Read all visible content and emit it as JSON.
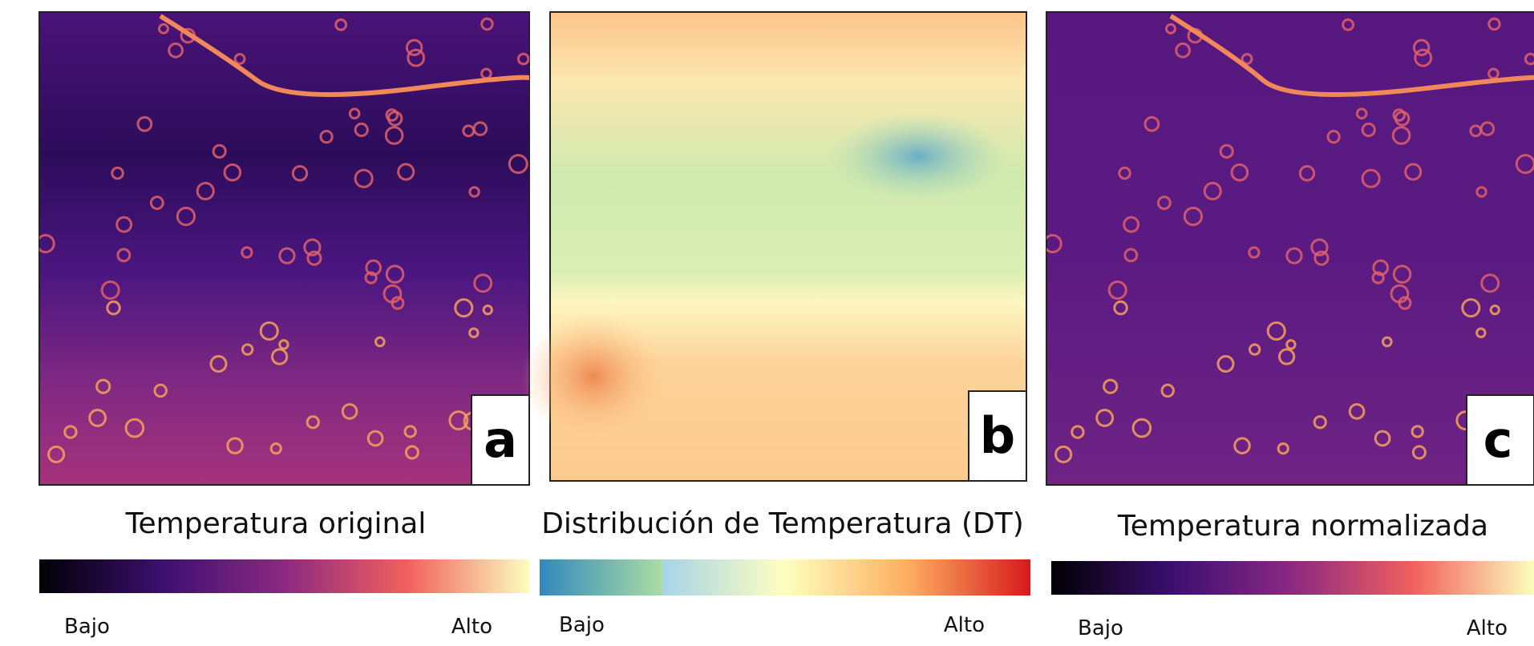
{
  "panels": [
    {
      "letter": "a",
      "caption": "Temperatura original",
      "low_label": "Bajo",
      "high_label": "Alto"
    },
    {
      "letter": "b",
      "caption": "Distribución de Temperatura (DT)",
      "low_label": "Bajo",
      "high_label": "Alto"
    },
    {
      "letter": "c",
      "caption": "Temperatura normalizada",
      "low_label": "Bajo",
      "high_label": "Alto"
    }
  ]
}
